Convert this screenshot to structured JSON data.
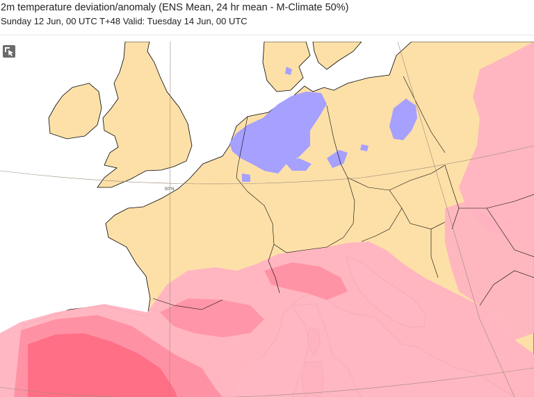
{
  "header": {
    "title": "2m temperature deviation/anomaly (ENS Mean, 24 hr mean - M-Climate 50%)",
    "subtitle": "Sunday 12 Jun, 00 UTC T+48 Valid: Tuesday 14 Jun, 00 UTC"
  },
  "map": {
    "lat_label": "50°N",
    "colors": {
      "land_neutral": "#fde0a8",
      "sea": "#ffffff",
      "anomaly_warm_light": "#ffb3c1",
      "anomaly_warm_mid": "#ff8fa3",
      "anomaly_warm_strong": "#ff6f85",
      "anomaly_cool": "#a6a0ff",
      "coastline": "#000000",
      "graticule": "#9a8a7a"
    }
  },
  "toolbar": {
    "select_tool_icon": "pointer-select-icon"
  }
}
